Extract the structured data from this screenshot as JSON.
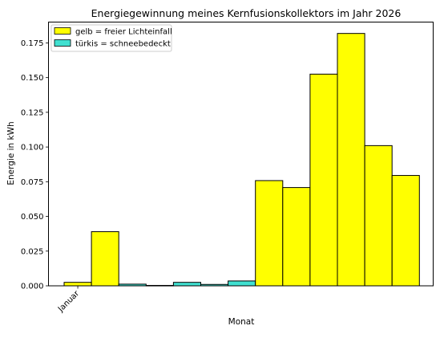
{
  "chart_data": {
    "type": "bar",
    "title": "Energiegewinnung meines Kernfusionskollektors im Jahr 2026",
    "xlabel": "Monat",
    "ylabel": "Energie in kWh",
    "x_tick_labels": [
      "Januar"
    ],
    "ylim": [
      0,
      0.19
    ],
    "y_ticks": [
      0.0,
      0.025,
      0.05,
      0.075,
      0.1,
      0.125,
      0.15,
      0.175
    ],
    "y_tick_labels": [
      "0.000",
      "0.025",
      "0.050",
      "0.075",
      "0.100",
      "0.125",
      "0.150",
      "0.175"
    ],
    "grid": false,
    "legend_position": "top-left",
    "legend": [
      {
        "label": "gelb = freier Lichteinfall",
        "color": "#ffff00"
      },
      {
        "label": "türkis = schneebedeckt",
        "color": "#40e0d0"
      }
    ],
    "bars": [
      {
        "value": 0.0025,
        "state": "gelb"
      },
      {
        "value": 0.039,
        "state": "gelb"
      },
      {
        "value": 0.0012,
        "state": "tuerkis"
      },
      {
        "value": 0.0003,
        "state": "tuerkis"
      },
      {
        "value": 0.0025,
        "state": "tuerkis"
      },
      {
        "value": 0.001,
        "state": "tuerkis"
      },
      {
        "value": 0.0035,
        "state": "tuerkis"
      },
      {
        "value": 0.0758,
        "state": "gelb"
      },
      {
        "value": 0.0708,
        "state": "gelb"
      },
      {
        "value": 0.1525,
        "state": "gelb"
      },
      {
        "value": 0.1818,
        "state": "gelb"
      },
      {
        "value": 0.101,
        "state": "gelb"
      },
      {
        "value": 0.0795,
        "state": "gelb"
      }
    ],
    "colors": {
      "gelb": "#ffff00",
      "tuerkis": "#40e0d0",
      "edge": "#000000"
    }
  }
}
